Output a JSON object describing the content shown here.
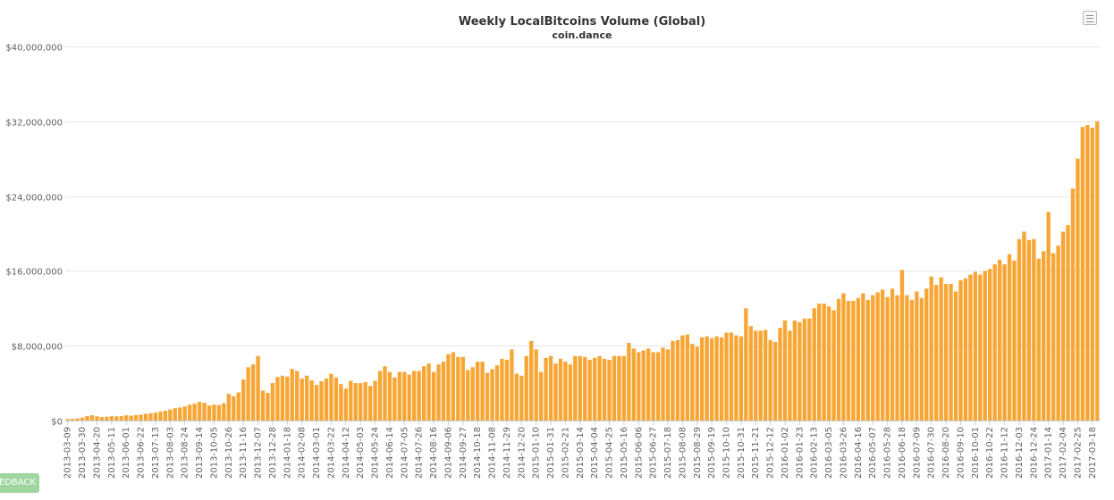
{
  "chart_data": {
    "type": "bar",
    "title": "Weekly LocalBitcoins Volume (Global)",
    "subtitle": "coin.dance",
    "xlabel": "",
    "ylabel": "",
    "ylim": [
      0,
      40000000
    ],
    "y_ticks": [
      0,
      8000000,
      16000000,
      24000000,
      32000000,
      40000000
    ],
    "y_tick_labels": [
      "$0",
      "$8,000,000",
      "$16,000,000",
      "$24,000,000",
      "$32,000,000",
      "$40,000,000"
    ],
    "x_start": "2013-03-09",
    "x_step_days": 7,
    "x_label_every": 3,
    "grid": true,
    "bar_color": "#F7A635",
    "values": [
      150000,
      180000,
      240000,
      320000,
      480000,
      560000,
      450000,
      380000,
      410000,
      460000,
      440000,
      470000,
      560000,
      520000,
      590000,
      640000,
      720000,
      780000,
      850000,
      950000,
      1050000,
      1180000,
      1320000,
      1400000,
      1500000,
      1700000,
      1800000,
      2000000,
      1900000,
      1600000,
      1700000,
      1650000,
      1850000,
      2850000,
      2600000,
      3000000,
      4400000,
      5700000,
      6000000,
      6900000,
      3200000,
      2950000,
      4000000,
      4650000,
      4800000,
      4700000,
      5500000,
      5300000,
      4500000,
      4800000,
      4300000,
      3800000,
      4200000,
      4500000,
      5000000,
      4600000,
      3900000,
      3400000,
      4250000,
      4000000,
      4000000,
      4100000,
      3700000,
      4250000,
      5300000,
      5800000,
      5200000,
      4600000,
      5200000,
      5200000,
      4900000,
      5300000,
      5300000,
      5800000,
      6100000,
      5200000,
      6000000,
      6300000,
      7100000,
      7300000,
      6800000,
      6800000,
      5400000,
      5700000,
      6300000,
      6300000,
      5100000,
      5500000,
      5900000,
      6600000,
      6500000,
      7600000,
      5000000,
      4800000,
      6900000,
      8500000,
      7600000,
      5200000,
      6700000,
      6900000,
      6100000,
      6600000,
      6300000,
      6000000,
      6900000,
      6900000,
      6800000,
      6500000,
      6700000,
      6900000,
      6600000,
      6500000,
      6900000,
      6900000,
      6900000,
      8300000,
      7700000,
      7300000,
      7500000,
      7700000,
      7300000,
      7300000,
      7800000,
      7600000,
      8500000,
      8600000,
      9100000,
      9200000,
      8200000,
      7900000,
      8900000,
      9000000,
      8800000,
      9000000,
      8900000,
      9400000,
      9400000,
      9100000,
      9000000,
      12000000,
      10100000,
      9600000,
      9600000,
      9700000,
      8600000,
      8400000,
      9900000,
      10700000,
      9600000,
      10700000,
      10500000,
      10900000,
      10900000,
      12000000,
      12500000,
      12500000,
      12200000,
      11800000,
      13000000,
      13600000,
      12800000,
      12800000,
      13100000,
      13600000,
      12900000,
      13400000,
      13700000,
      14000000,
      13200000,
      14100000,
      13400000,
      16100000,
      13400000,
      12900000,
      13800000,
      13100000,
      14100000,
      15400000,
      14500000,
      15300000,
      14600000,
      14600000,
      13800000,
      15000000,
      15200000,
      15600000,
      15900000,
      15600000,
      16000000,
      16200000,
      16700000,
      17200000,
      16700000,
      17800000,
      17100000,
      19400000,
      20200000,
      19300000,
      19400000,
      17300000,
      18100000,
      22300000,
      17900000,
      18700000,
      20200000,
      20900000,
      24800000,
      28000000,
      31400000,
      31600000,
      31300000,
      32000000
    ]
  },
  "ui": {
    "menu_icon": "hamburger-icon",
    "feedback_label": "FEEDBACK"
  }
}
